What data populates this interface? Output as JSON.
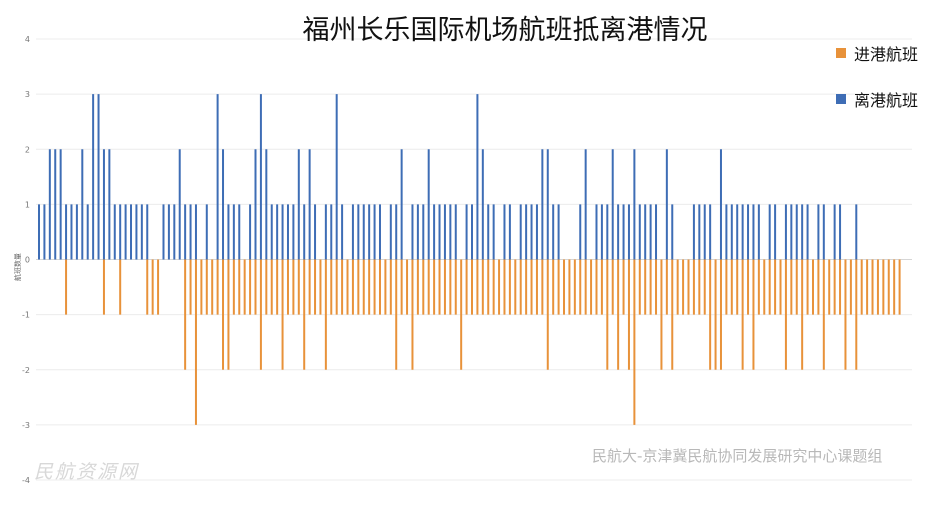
{
  "chart_data": {
    "type": "bar",
    "title": "福州长乐国际机场航班抵离港情况",
    "ylabel": "航班数量",
    "ylim": [
      -4,
      4
    ],
    "yticks": [
      4,
      3,
      2,
      1,
      0,
      -1,
      -2,
      -3,
      -4
    ],
    "grid": true,
    "legend_position": "top-right",
    "series": [
      {
        "name": "进港航班",
        "color": "#E8923A",
        "values": [
          0,
          0,
          0,
          0,
          0,
          -1,
          0,
          0,
          0,
          0,
          0,
          0,
          -1,
          0,
          0,
          -1,
          0,
          0,
          0,
          0,
          -1,
          -1,
          -1,
          0,
          0,
          0,
          0,
          -2,
          -1,
          -3,
          -1,
          -1,
          -1,
          -1,
          -2,
          -2,
          -1,
          -1,
          -1,
          -1,
          -1,
          -2,
          -1,
          -1,
          -1,
          -2,
          -1,
          -1,
          -1,
          -2,
          -1,
          -1,
          -1,
          -2,
          -1,
          -1,
          -1,
          -1,
          -1,
          -1,
          -1,
          -1,
          -1,
          -1,
          -1,
          -1,
          -2,
          -1,
          -1,
          -2,
          -1,
          -1,
          -1,
          -1,
          -1,
          -1,
          -1,
          -1,
          -2,
          -1,
          -1,
          -1,
          -1,
          -1,
          -1,
          -1,
          -1,
          -1,
          -1,
          -1,
          -1,
          -1,
          -1,
          -1,
          -2,
          -1,
          -1,
          -1,
          -1,
          -1,
          -1,
          -1,
          -1,
          -1,
          -1,
          -2,
          -1,
          -2,
          -1,
          -2,
          -3,
          -1,
          -1,
          -1,
          -1,
          -2,
          -1,
          -2,
          -1,
          -1,
          -1,
          -1,
          -1,
          -1,
          -2,
          -2,
          -2,
          -1,
          -1,
          -1,
          -2,
          -1,
          -2,
          -1,
          -1,
          -1,
          -1,
          -1,
          -2,
          -1,
          -1,
          -2,
          -1,
          -1,
          -1,
          -2,
          -1,
          -1,
          -1,
          -2,
          -1,
          -2,
          -1,
          -1,
          -1,
          -1,
          -1,
          -1,
          -1,
          -1
        ]
      },
      {
        "name": "离港航班",
        "color": "#3E6DB5",
        "values": [
          1,
          1,
          2,
          2,
          2,
          1,
          1,
          1,
          2,
          1,
          3,
          3,
          2,
          2,
          1,
          1,
          1,
          1,
          1,
          1,
          1,
          0,
          0,
          1,
          1,
          1,
          2,
          1,
          1,
          1,
          0,
          1,
          0,
          3,
          2,
          1,
          1,
          1,
          0,
          1,
          2,
          3,
          2,
          1,
          1,
          1,
          1,
          1,
          2,
          1,
          2,
          1,
          0,
          1,
          1,
          3,
          1,
          0,
          1,
          1,
          1,
          1,
          1,
          1,
          0,
          1,
          1,
          2,
          0,
          1,
          1,
          1,
          2,
          1,
          1,
          1,
          1,
          1,
          0,
          1,
          1,
          3,
          2,
          1,
          1,
          0,
          1,
          1,
          0,
          1,
          1,
          1,
          1,
          2,
          2,
          1,
          1,
          0,
          0,
          0,
          1,
          2,
          0,
          1,
          1,
          1,
          2,
          1,
          1,
          1,
          2,
          1,
          1,
          1,
          1,
          0,
          2,
          1,
          0,
          0,
          0,
          1,
          1,
          1,
          1,
          0,
          2,
          1,
          1,
          1,
          1,
          1,
          1,
          1,
          0,
          1,
          1,
          0,
          1,
          1,
          1,
          1,
          1,
          0,
          1,
          1,
          0,
          1,
          1,
          0,
          0,
          1,
          0,
          0,
          0,
          0,
          0,
          0,
          0,
          0
        ]
      }
    ]
  },
  "watermarks": {
    "right": "民航大-京津冀民航协同发展研究中心课题组",
    "left": "民航资源网"
  }
}
